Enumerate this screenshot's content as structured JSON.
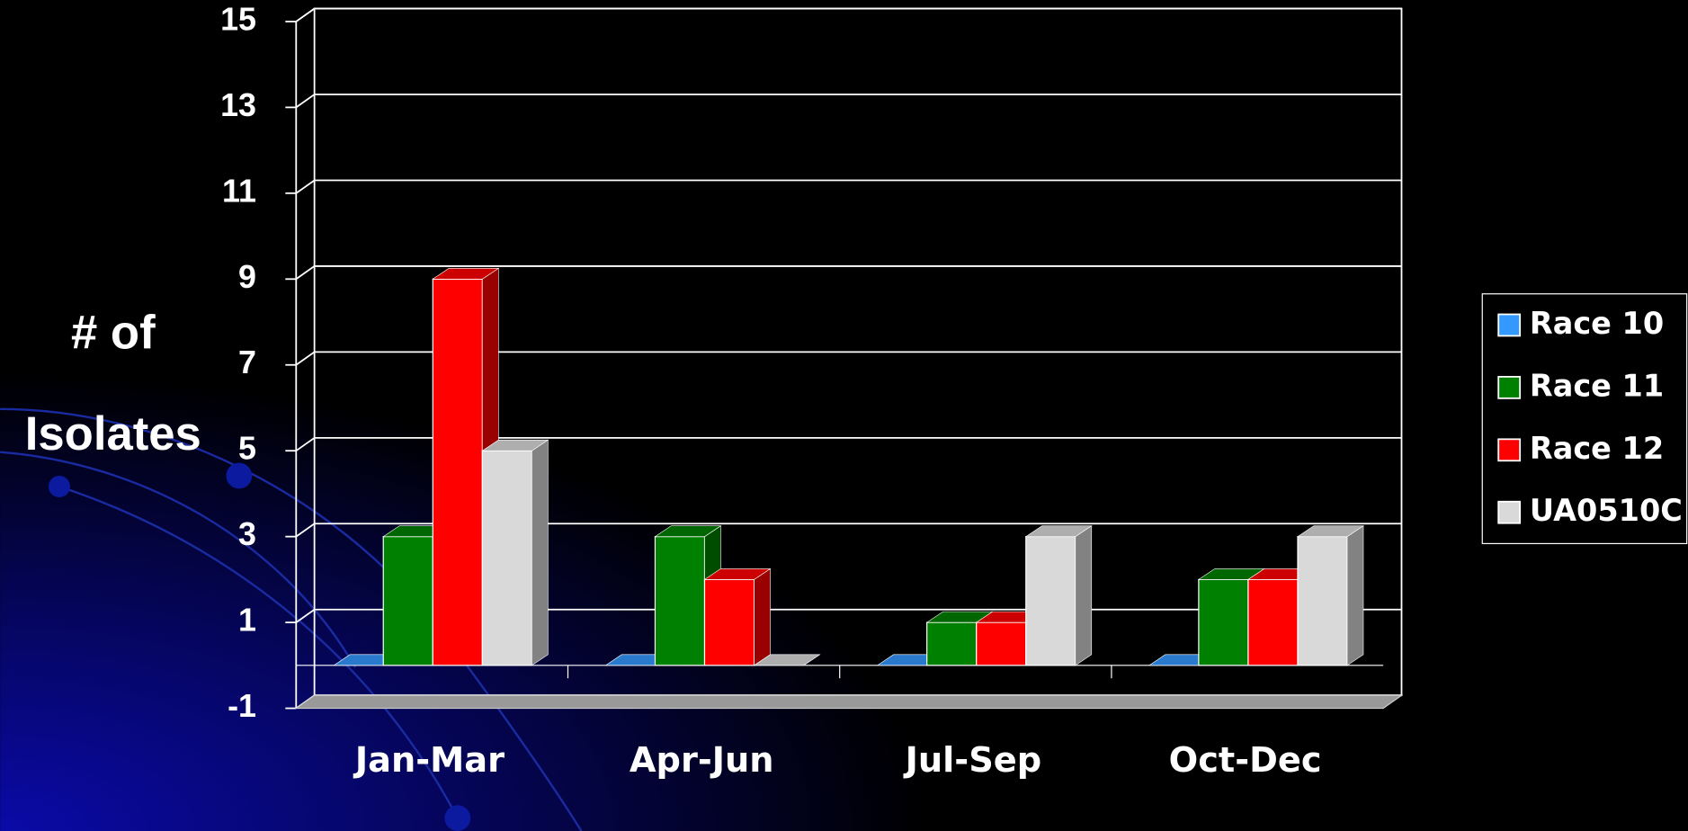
{
  "chart_data": {
    "type": "bar3d",
    "ylabel": [
      "# of",
      "Isolates"
    ],
    "categories": [
      "Jan-Mar",
      "Apr-Jun",
      "Jul-Sep",
      "Oct-Dec"
    ],
    "series": [
      {
        "name": "Race 10",
        "color": "#3399ff",
        "values": [
          0,
          0,
          0,
          0
        ]
      },
      {
        "name": "Race 11",
        "color": "#008000",
        "values": [
          3,
          3,
          1,
          2
        ]
      },
      {
        "name": "Race 12",
        "color": "#ff0000",
        "values": [
          9,
          2,
          1,
          2
        ]
      },
      {
        "name": "UA0510C",
        "color": "#d9d9d9",
        "values": [
          5,
          0,
          3,
          3
        ]
      }
    ],
    "ylim": [
      -1,
      15
    ],
    "yticks": [
      -1,
      1,
      3,
      5,
      7,
      9,
      11,
      13,
      15
    ],
    "grid": true,
    "legend": "right"
  }
}
